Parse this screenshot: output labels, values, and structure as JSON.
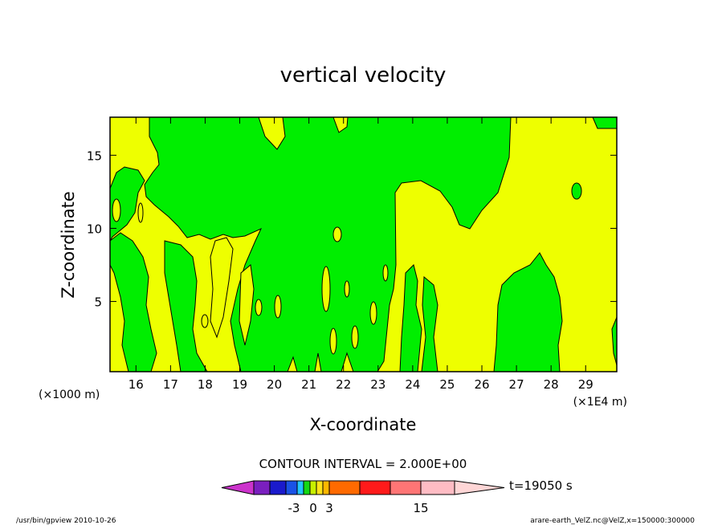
{
  "chart_data": {
    "type": "heatmap",
    "title": "vertical velocity",
    "xlabel": "X-coordinate",
    "ylabel": "Z-coordinate",
    "x_unit_left": "(×1000 m)",
    "x_unit_right": "(×1E4 m)",
    "x_ticks": [
      "16",
      "17",
      "18",
      "19",
      "20",
      "21",
      "22",
      "23",
      "24",
      "25",
      "26",
      "27",
      "28",
      "29"
    ],
    "y_ticks": [
      "5",
      "10",
      "15"
    ],
    "xlim": [
      15.25,
      29.9
    ],
    "ylim": [
      0.2,
      17.6
    ],
    "contour_interval_label": "CONTOUR INTERVAL = 2.000E+00",
    "time_label": "t=19050 s",
    "colorbar_labels": [
      "-3",
      "0",
      "3",
      "15"
    ],
    "colorbar_colors": [
      "#cc33cc",
      "#7a1fbf",
      "#1a1acc",
      "#1a52e6",
      "#23c4ff",
      "#14d914",
      "#c8f000",
      "#ffe31a",
      "#ffb800",
      "#ff6a00",
      "#ff1a1a",
      "#ff7575",
      "#ffbcc4",
      "#ffd6d6"
    ],
    "field_colors": {
      "negative_small": "#00ee00",
      "positive_small": "#eeff00"
    },
    "footer_left": "/usr/bin/gpview  2010-10-26",
    "footer_right": "arare-earth_VelZ.nc@VelZ,x=150000:300000"
  }
}
